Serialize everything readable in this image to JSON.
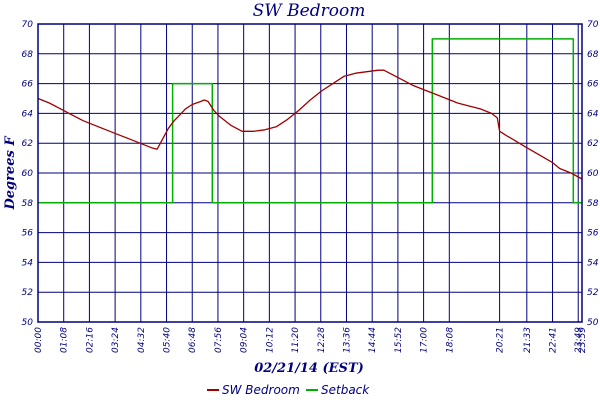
{
  "chart_data": {
    "type": "line",
    "title": "SW Bedroom",
    "xlabel": "02/21/14 (EST)",
    "ylabel": "Degrees F",
    "ylim": [
      50,
      70
    ],
    "y_ticks": [
      50,
      52,
      54,
      56,
      58,
      60,
      62,
      64,
      66,
      68,
      70
    ],
    "x_tick_labels": [
      "00:00",
      "01:08",
      "02:16",
      "03:24",
      "04:32",
      "05:40",
      "06:48",
      "07:56",
      "09:04",
      "10:12",
      "11:20",
      "12:28",
      "13:36",
      "14:44",
      "15:52",
      "17:00",
      "18:08",
      "20:21",
      "21:33",
      "22:41",
      "23:49",
      "23:59"
    ],
    "grid": true,
    "legend_position": "bottom",
    "colors": {
      "axis": "#00007f",
      "sw_bedroom": "#a00000",
      "setback": "#00b000"
    },
    "series": [
      {
        "name": "SW Bedroom",
        "x": [
          "00:00",
          "00:30",
          "01:00",
          "01:30",
          "02:00",
          "02:30",
          "03:00",
          "03:30",
          "04:00",
          "04:30",
          "05:00",
          "05:15",
          "05:30",
          "05:45",
          "06:00",
          "06:15",
          "06:30",
          "06:48",
          "07:10",
          "07:20",
          "07:30",
          "07:45",
          "08:00",
          "08:30",
          "09:00",
          "09:30",
          "10:00",
          "10:30",
          "11:00",
          "11:30",
          "12:00",
          "12:30",
          "13:00",
          "13:30",
          "14:00",
          "14:30",
          "15:00",
          "15:15",
          "15:30",
          "16:00",
          "16:30",
          "17:00",
          "17:30",
          "18:00",
          "18:30",
          "19:00",
          "19:30",
          "20:00",
          "20:15",
          "20:21",
          "20:40",
          "21:00",
          "21:33",
          "22:00",
          "22:41",
          "23:00",
          "23:30",
          "23:59"
        ],
        "values": [
          65.0,
          64.7,
          64.3,
          63.9,
          63.5,
          63.2,
          62.9,
          62.6,
          62.3,
          62.0,
          61.7,
          61.6,
          62.3,
          63.0,
          63.5,
          63.9,
          64.3,
          64.6,
          64.8,
          64.9,
          64.8,
          64.2,
          63.8,
          63.2,
          62.8,
          62.8,
          62.9,
          63.1,
          63.6,
          64.2,
          64.9,
          65.5,
          66.0,
          66.5,
          66.7,
          66.8,
          66.9,
          66.9,
          66.7,
          66.3,
          65.9,
          65.6,
          65.3,
          65.0,
          64.7,
          64.5,
          64.3,
          64.0,
          63.7,
          62.8,
          62.5,
          62.2,
          61.7,
          61.3,
          60.7,
          60.3,
          60.0,
          59.6
        ]
      },
      {
        "name": "Setback",
        "x": [
          "00:00",
          "05:56",
          "05:56",
          "07:41",
          "07:41",
          "17:23",
          "17:23",
          "23:36",
          "23:36",
          "23:59"
        ],
        "values": [
          58,
          58,
          66,
          66,
          58,
          58,
          69,
          69,
          58,
          58
        ]
      }
    ]
  }
}
